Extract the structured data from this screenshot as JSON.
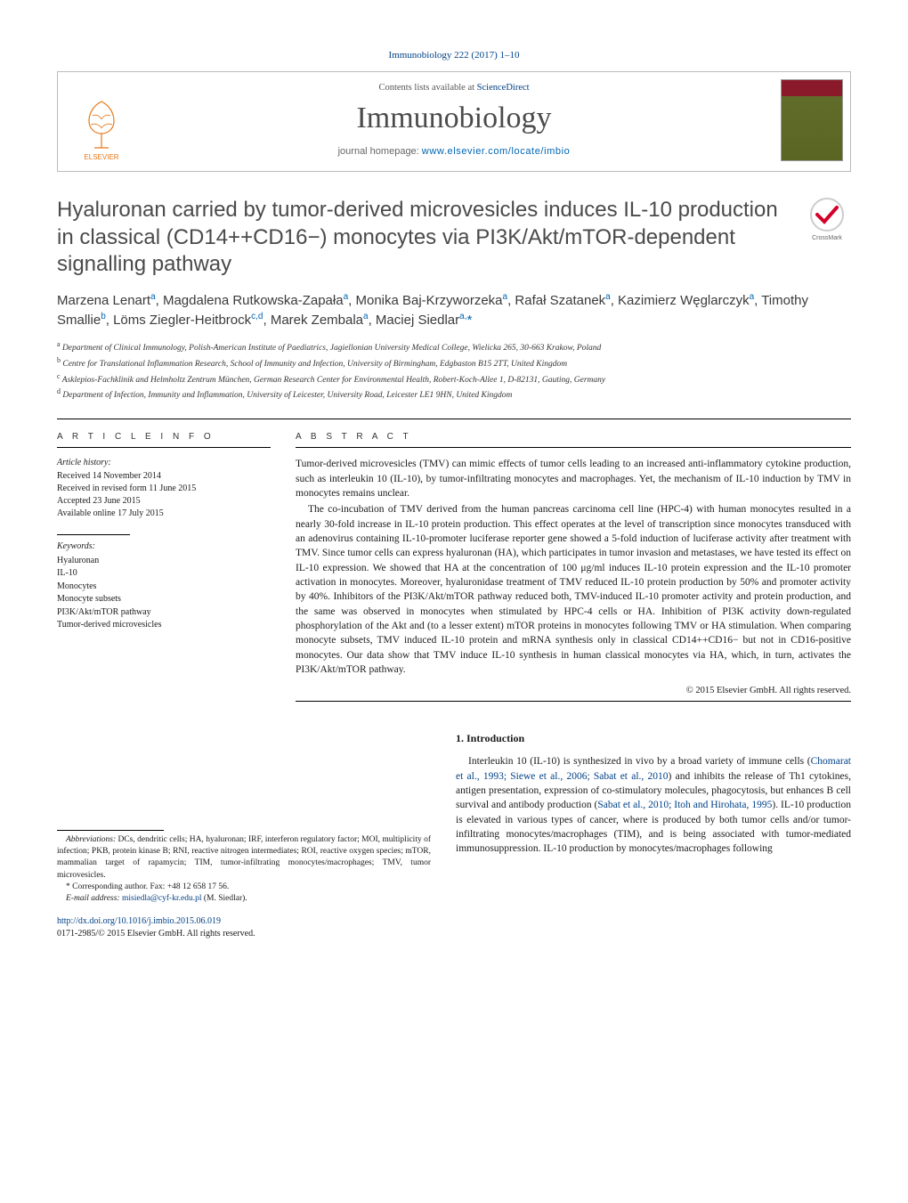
{
  "journal_ref": "Immunobiology 222 (2017) 1–10",
  "header": {
    "contents_line_prefix": "Contents lists available at ",
    "contents_link_text": "ScienceDirect",
    "journal_name": "Immunobiology",
    "homepage_prefix": "journal homepage: ",
    "homepage_url_text": "www.elsevier.com/locate/imbio",
    "elsevier_label": "ELSEVIER"
  },
  "title": "Hyaluronan carried by tumor-derived microvesicles induces IL-10 production in classical (CD14++CD16−) monocytes via PI3K/Akt/mTOR-dependent signalling pathway",
  "authors_html": "Marzena Lenart<sup>a</sup>, Magdalena Rutkowska-Zapała<sup>a</sup>, Monika Baj-Krzyworzeka<sup>a</sup>, Rafał Szatanek<sup>a</sup>, Kazimierz Węglarczyk<sup>a</sup>, Timothy Smallie<sup>b</sup>, Löms Ziegler-Heitbrock<sup>c,d</sup>, Marek Zembala<sup>a</sup>, Maciej Siedlar<sup>a,</sup><span class='corr'>*</span>",
  "affiliations": [
    "a Department of Clinical Immunology, Polish-American Institute of Paediatrics, Jagiellonian University Medical College, Wielicka 265, 30-663 Krakow, Poland",
    "b Centre for Translational Inflammation Research, School of Immunity and Infection, University of Birmingham, Edgbaston B15 2TT, United Kingdom",
    "c Asklepios-Fachklinik and Helmholtz Zentrum München, German Research Center for Environmental Health, Robert-Koch-Allee 1, D-82131, Gauting, Germany",
    "d Department of Infection, Immunity and Inflammation, University of Leicester, University Road, Leicester LE1 9HN, United Kingdom"
  ],
  "article_info_head": "A R T I C L E   I N F O",
  "abstract_head": "A B S T R A C T",
  "history": {
    "label": "Article history:",
    "items": [
      "Received 14 November 2014",
      "Received in revised form 11 June 2015",
      "Accepted 23 June 2015",
      "Available online 17 July 2015"
    ]
  },
  "keywords": {
    "label": "Keywords:",
    "items": [
      "Hyaluronan",
      "IL-10",
      "Monocytes",
      "Monocyte subsets",
      "PI3K/Akt/mTOR pathway",
      "Tumor-derived microvesicles"
    ]
  },
  "abstract_paragraphs": [
    "Tumor-derived microvesicles (TMV) can mimic effects of tumor cells leading to an increased anti-inflammatory cytokine production, such as interleukin 10 (IL-10), by tumor-infiltrating monocytes and macrophages. Yet, the mechanism of IL-10 induction by TMV in monocytes remains unclear.",
    "The co-incubation of TMV derived from the human pancreas carcinoma cell line (HPC-4) with human monocytes resulted in a nearly 30-fold increase in IL-10 protein production. This effect operates at the level of transcription since monocytes transduced with an adenovirus containing IL-10-promoter luciferase reporter gene showed a 5-fold induction of luciferase activity after treatment with TMV. Since tumor cells can express hyaluronan (HA), which participates in tumor invasion and metastases, we have tested its effect on IL-10 expression. We showed that HA at the concentration of 100 μg/ml induces IL-10 protein expression and the IL-10 promoter activation in monocytes. Moreover, hyaluronidase treatment of TMV reduced IL-10 protein production by 50% and promoter activity by 40%. Inhibitors of the PI3K/Akt/mTOR pathway reduced both, TMV-induced IL-10 promoter activity and protein production, and the same was observed in monocytes when stimulated by HPC-4 cells or HA. Inhibition of PI3K activity down-regulated phosphorylation of the Akt and (to a lesser extent) mTOR proteins in monocytes following TMV or HA stimulation. When comparing monocyte subsets, TMV induced IL-10 protein and mRNA synthesis only in classical CD14++CD16− but not in CD16-positive monocytes. Our data show that TMV induce IL-10 synthesis in human classical monocytes via HA, which, in turn, activates the PI3K/Akt/mTOR pathway."
  ],
  "copyright": "© 2015 Elsevier GmbH. All rights reserved.",
  "intro": {
    "heading": "1.  Introduction",
    "text_before_link1": "Interleukin 10 (IL-10) is synthesized in vivo by a broad variety of immune cells (",
    "link1": "Chomarat et al., 1993; Siewe et al., 2006; Sabat et al., 2010",
    "text_mid1": ") and inhibits the release of Th1 cytokines, antigen presentation, expression of co-stimulatory molecules, phagocytosis, but enhances B cell survival and antibody production (",
    "link2": "Sabat et al., 2010; Itoh and Hirohata, 1995",
    "text_mid2": "). IL-10 production is elevated in various types of cancer, where is produced by both tumor cells and/or tumor-infiltrating monocytes/macrophages (TIM), and is being associated with tumor-mediated immunosuppression. IL-10 production by monocytes/macrophages following"
  },
  "footnotes": {
    "abbrev_label": "Abbreviations:",
    "abbrev_text": " DCs, dendritic cells; HA, hyaluronan; IRF, interferon regulatory factor; MOI, multiplicity of infection; PKB, protein kinase B; RNI, reactive nitrogen intermediates; ROI, reactive oxygen species; mTOR, mammalian target of rapamycin; TIM, tumor-infiltrating monocytes/macrophages; TMV, tumor microvesicles.",
    "corr_label": "* Corresponding author. Fax: +48 12 658 17 56.",
    "email_label": "E-mail address: ",
    "email": "misiedla@cyf-kr.edu.pl",
    "email_suffix": " (M. Siedlar)."
  },
  "doi": {
    "url_text": "http://dx.doi.org/10.1016/j.imbio.2015.06.019",
    "issn_line": "0171-2985/© 2015 Elsevier GmbH. All rights reserved."
  },
  "colors": {
    "link": "#004085",
    "link_bright": "#0066b3",
    "elsevier_orange": "#e67817",
    "text_gray": "#4a4a4a"
  }
}
